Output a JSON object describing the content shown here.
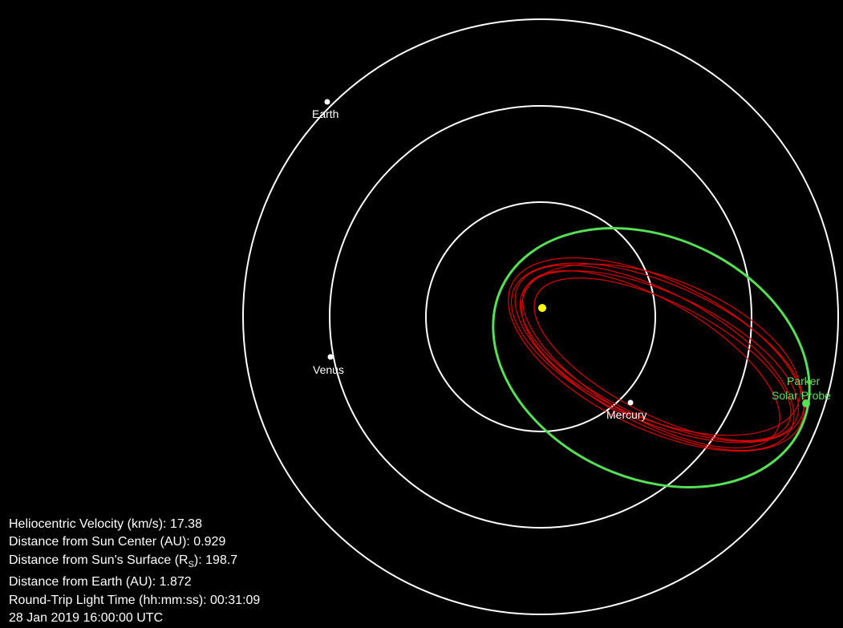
{
  "colors": {
    "background": "#000000",
    "planet_orbit": "#ffffff",
    "sun": "#ffff00",
    "probe_orbit": "#55e055",
    "probe_trajectory": "#dd0000",
    "probe_label": "#5fe05f"
  },
  "bodies": {
    "sun": {
      "name": ""
    },
    "mercury": {
      "label": "Mercury"
    },
    "venus": {
      "label": "Venus"
    },
    "earth": {
      "label": "Earth"
    },
    "probe": {
      "label_line1": "Parker",
      "label_line2": "Solar Probe"
    }
  },
  "readout": {
    "velocity": "Heliocentric Velocity (km/s): 17.38",
    "sun_center": "Distance from Sun Center (AU): 0.929",
    "surface_prefix": "Distance from Sun's Surface (R",
    "surface_sub": "S",
    "surface_suffix": "): 198.7",
    "earth_distance": "Distance from Earth (AU): 1.872",
    "light_time": "Round-Trip Light Time (hh:mm:ss): 00:31:09",
    "timestamp": "28 Jan 2019 16:00:00 UTC"
  }
}
